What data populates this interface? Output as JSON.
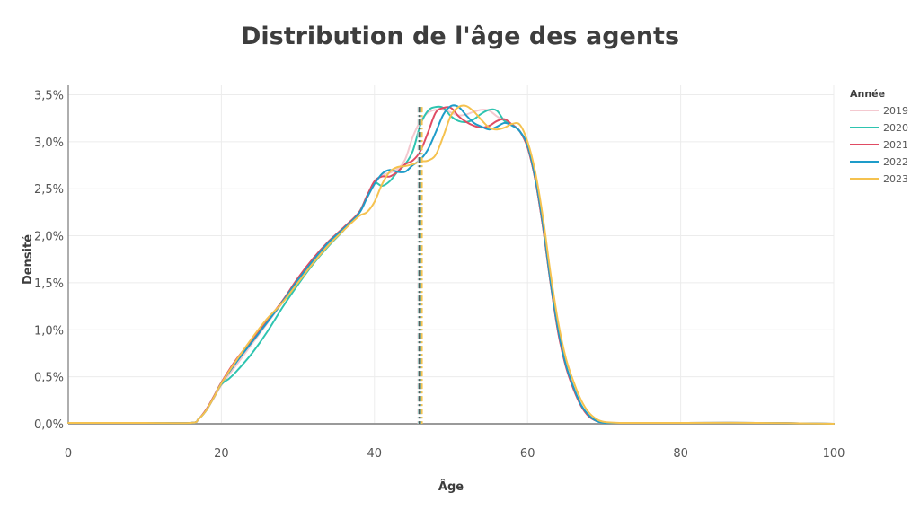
{
  "chart_data": {
    "type": "line",
    "title": "Distribution de l'âge des agents",
    "xlabel": "Âge",
    "ylabel": "Densité",
    "xlim": [
      0,
      100
    ],
    "ylim": [
      0,
      0.036
    ],
    "x_ticks": [
      0,
      20,
      40,
      60,
      80,
      100
    ],
    "x_tick_labels": [
      "0",
      "20",
      "40",
      "60",
      "80",
      "100"
    ],
    "y_ticks": [
      0,
      0.005,
      0.01,
      0.015,
      0.02,
      0.025,
      0.03,
      0.035
    ],
    "y_tick_labels": [
      "0,0%",
      "0,5%",
      "1,0%",
      "1,5%",
      "2,0%",
      "2,5%",
      "3,0%",
      "3,5%"
    ],
    "grid": true,
    "legend": {
      "title": "Année",
      "position": "right"
    },
    "median_markers": [
      {
        "x": 45.9,
        "y_top": 0.0337
      }
    ],
    "series": [
      {
        "name": "2019",
        "color": "#f4c9d0",
        "x": [
          0,
          10,
          16,
          17,
          18,
          19,
          20,
          22,
          24,
          26,
          28,
          30,
          32,
          34,
          36,
          38,
          40,
          41,
          42,
          43,
          44,
          45,
          46,
          47,
          48,
          49,
          50,
          51,
          52,
          53,
          54,
          55,
          56,
          57,
          58,
          59,
          60,
          61,
          62,
          63,
          64,
          65,
          66,
          67,
          68,
          69,
          70,
          72,
          75,
          80,
          90,
          100
        ],
        "values": [
          0.0001,
          0.0001,
          0.0001,
          0.0005,
          0.0014,
          0.0027,
          0.0041,
          0.0063,
          0.0085,
          0.0107,
          0.0129,
          0.0152,
          0.0172,
          0.0191,
          0.0207,
          0.0225,
          0.0255,
          0.0264,
          0.0267,
          0.0271,
          0.0281,
          0.0305,
          0.0322,
          0.0331,
          0.0334,
          0.0334,
          0.0331,
          0.0328,
          0.0329,
          0.0332,
          0.0334,
          0.0333,
          0.0327,
          0.0322,
          0.0318,
          0.0311,
          0.0295,
          0.026,
          0.021,
          0.015,
          0.0098,
          0.0062,
          0.0038,
          0.0019,
          0.0008,
          0.0003,
          0.0001,
          0.0001,
          0.0001,
          0.0001,
          0.0001,
          0.0
        ]
      },
      {
        "name": "2020",
        "color": "#2ec4b0",
        "x": [
          0,
          10,
          16,
          17,
          18,
          19,
          20,
          21,
          22,
          24,
          26,
          28,
          30,
          32,
          34,
          36,
          38,
          39,
          40,
          41,
          42,
          43,
          44,
          45,
          46,
          47,
          48,
          49,
          50,
          51,
          52,
          53,
          54,
          55,
          56,
          57,
          58,
          59,
          60,
          61,
          62,
          63,
          64,
          65,
          66,
          67,
          68,
          69,
          70,
          72,
          75,
          80,
          90,
          100
        ],
        "values": [
          0.0001,
          0.0001,
          0.0001,
          0.0005,
          0.0014,
          0.0028,
          0.0042,
          0.0048,
          0.0056,
          0.0075,
          0.0098,
          0.0124,
          0.0148,
          0.017,
          0.0189,
          0.0206,
          0.0225,
          0.0242,
          0.0256,
          0.0253,
          0.0258,
          0.0268,
          0.0276,
          0.029,
          0.0318,
          0.0333,
          0.0337,
          0.0336,
          0.0327,
          0.0322,
          0.0321,
          0.0324,
          0.033,
          0.0334,
          0.0333,
          0.0322,
          0.0318,
          0.0311,
          0.0294,
          0.026,
          0.021,
          0.015,
          0.0098,
          0.0062,
          0.0038,
          0.002,
          0.0009,
          0.0003,
          0.0001,
          0.0001,
          0.0001,
          0.0001,
          0.0001,
          0.0
        ]
      },
      {
        "name": "2021",
        "color": "#e04b63",
        "x": [
          0,
          10,
          16,
          17,
          18,
          19,
          20,
          22,
          24,
          26,
          28,
          30,
          32,
          34,
          36,
          38,
          39,
          40,
          41,
          42,
          43,
          44,
          45,
          46,
          47,
          48,
          49,
          50,
          51,
          52,
          53,
          54,
          55,
          56,
          57,
          58,
          59,
          60,
          61,
          62,
          63,
          64,
          65,
          66,
          67,
          68,
          69,
          70,
          72,
          75,
          80,
          90,
          100
        ],
        "values": [
          0.0001,
          0.0001,
          0.0001,
          0.0005,
          0.0015,
          0.0029,
          0.0044,
          0.0069,
          0.0089,
          0.011,
          0.0131,
          0.0155,
          0.0176,
          0.0194,
          0.0209,
          0.0225,
          0.0242,
          0.0258,
          0.0263,
          0.0263,
          0.0268,
          0.0276,
          0.028,
          0.029,
          0.031,
          0.0331,
          0.0336,
          0.0336,
          0.0327,
          0.0321,
          0.0317,
          0.0315,
          0.0317,
          0.0322,
          0.0324,
          0.0318,
          0.0311,
          0.0294,
          0.026,
          0.021,
          0.015,
          0.0097,
          0.0061,
          0.0037,
          0.0019,
          0.0008,
          0.0003,
          0.0001,
          0.0001,
          0.0001,
          0.0001,
          0.0001,
          0.0
        ]
      },
      {
        "name": "2022",
        "color": "#1e9cc9",
        "x": [
          0,
          10,
          16,
          17,
          18,
          19,
          20,
          22,
          24,
          26,
          28,
          30,
          32,
          34,
          36,
          38,
          39,
          40,
          41,
          42,
          43,
          44,
          45,
          46,
          47,
          48,
          49,
          50,
          51,
          52,
          53,
          54,
          55,
          56,
          57,
          58,
          59,
          60,
          61,
          62,
          63,
          64,
          65,
          66,
          67,
          68,
          69,
          70,
          72,
          75,
          80,
          90,
          100
        ],
        "values": [
          0.0001,
          0.0001,
          0.0001,
          0.0005,
          0.0014,
          0.0028,
          0.0043,
          0.0066,
          0.0087,
          0.0108,
          0.013,
          0.0153,
          0.0174,
          0.0193,
          0.0208,
          0.0224,
          0.024,
          0.0255,
          0.0266,
          0.027,
          0.0268,
          0.0268,
          0.0275,
          0.0281,
          0.0292,
          0.031,
          0.0329,
          0.0338,
          0.0337,
          0.0328,
          0.032,
          0.0316,
          0.0313,
          0.0316,
          0.032,
          0.0317,
          0.0311,
          0.0296,
          0.0262,
          0.0213,
          0.0152,
          0.01,
          0.0063,
          0.0039,
          0.002,
          0.0009,
          0.0003,
          0.0001,
          0.0001,
          0.0001,
          0.0001,
          0.0001,
          0.0
        ]
      },
      {
        "name": "2023",
        "color": "#f5c24f",
        "x": [
          0,
          10,
          16,
          17,
          18,
          19,
          20,
          22,
          24,
          26,
          28,
          30,
          32,
          34,
          36,
          38,
          39,
          40,
          41,
          42,
          43,
          44,
          45,
          46,
          47,
          48,
          49,
          50,
          51,
          52,
          53,
          54,
          55,
          56,
          57,
          58,
          59,
          60,
          61,
          62,
          63,
          64,
          65,
          66,
          67,
          68,
          69,
          70,
          72,
          75,
          80,
          90,
          100
        ],
        "values": [
          0.0001,
          0.0001,
          0.0001,
          0.0005,
          0.0014,
          0.0028,
          0.0043,
          0.0068,
          0.0091,
          0.0112,
          0.0129,
          0.015,
          0.0171,
          0.019,
          0.0206,
          0.0221,
          0.0225,
          0.0236,
          0.0255,
          0.0268,
          0.0273,
          0.0274,
          0.0276,
          0.0279,
          0.028,
          0.0286,
          0.0306,
          0.0328,
          0.0337,
          0.0338,
          0.0332,
          0.0323,
          0.0315,
          0.0313,
          0.0315,
          0.0319,
          0.0318,
          0.03,
          0.0268,
          0.022,
          0.016,
          0.0108,
          0.007,
          0.0045,
          0.0025,
          0.0012,
          0.0005,
          0.0002,
          0.0001,
          0.0001,
          0.0001,
          0.0001,
          0.0
        ]
      }
    ]
  }
}
